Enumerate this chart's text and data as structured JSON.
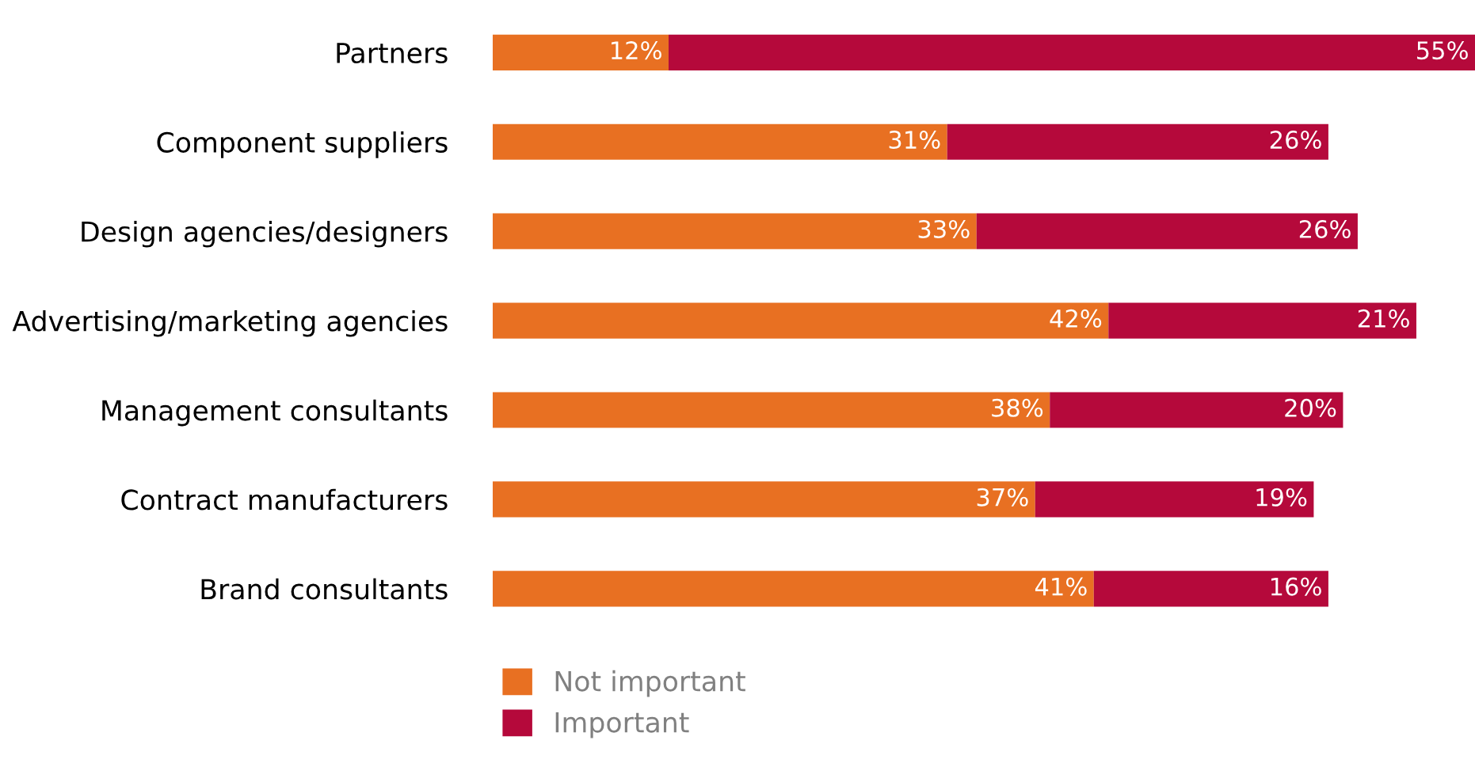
{
  "chart_data": {
    "type": "bar",
    "orientation": "horizontal",
    "stacked": true,
    "legend": "bottom",
    "grid": false,
    "categories": [
      "Partners",
      "Component suppliers",
      "Design agencies/designers",
      "Advertising/marketing agencies",
      "Management consultants",
      "Contract manufacturers",
      "Brand consultants"
    ],
    "series": [
      {
        "name": "Not important",
        "color": "#e87022",
        "values": [
          12,
          31,
          33,
          42,
          38,
          37,
          41
        ],
        "value_labels": [
          "12%",
          "31%",
          "33%",
          "42%",
          "38%",
          "37%",
          "41%"
        ]
      },
      {
        "name": "Important",
        "color": "#b5093b",
        "values": [
          55,
          26,
          26,
          21,
          20,
          19,
          16
        ],
        "value_labels": [
          "55%",
          "26%",
          "26%",
          "21%",
          "20%",
          "19%",
          "16%"
        ]
      }
    ]
  }
}
